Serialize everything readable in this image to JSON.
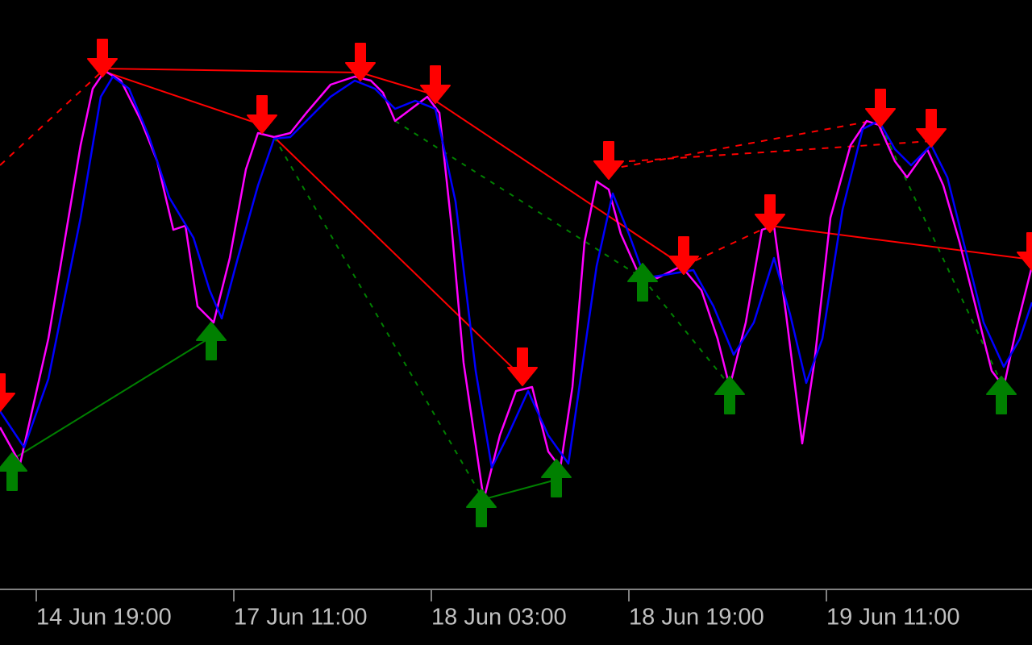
{
  "chart_data": {
    "type": "line",
    "xlim": [
      0,
      1280
    ],
    "ylim": [
      0,
      730
    ],
    "grid": false,
    "xticks": [
      {
        "value": 45,
        "label": "14 Jun 19:00"
      },
      {
        "value": 290,
        "label": "17 Jun 11:00"
      },
      {
        "value": 535,
        "label": "18 Jun 03:00"
      },
      {
        "value": 780,
        "label": "18 Jun 19:00"
      },
      {
        "value": 1025,
        "label": "19 Jun 11:00"
      }
    ],
    "series": [
      {
        "color": "#ff00ff",
        "marker": "none",
        "x": [
          0,
          25,
          60,
          100,
          115,
          130,
          150,
          175,
          195,
          215,
          230,
          245,
          265,
          285,
          305,
          320,
          340,
          360,
          380,
          410,
          440,
          460,
          475,
          490,
          510,
          530,
          545,
          560,
          575,
          600,
          620,
          640,
          660,
          680,
          695,
          710,
          725,
          740,
          755,
          770,
          790,
          815,
          845,
          870,
          890,
          905,
          925,
          945,
          960,
          975,
          995,
          1010,
          1030,
          1055,
          1075,
          1090,
          1110,
          1125,
          1150,
          1170,
          1190,
          1210,
          1230,
          1245,
          1260,
          1280
        ],
        "values": [
          200,
          155,
          310,
          550,
          620,
          642,
          630,
          580,
          530,
          445,
          450,
          350,
          330,
          410,
          520,
          565,
          560,
          565,
          590,
          625,
          635,
          630,
          615,
          580,
          595,
          610,
          590,
          450,
          280,
          110,
          190,
          245,
          250,
          170,
          150,
          250,
          430,
          505,
          495,
          440,
          395,
          385,
          400,
          370,
          310,
          250,
          330,
          445,
          450,
          340,
          180,
          280,
          460,
          550,
          580,
          575,
          530,
          510,
          545,
          500,
          430,
          350,
          270,
          250,
          320,
          400
        ]
      },
      {
        "color": "#0000ff",
        "marker": "none",
        "x": [
          0,
          30,
          60,
          100,
          125,
          140,
          160,
          185,
          210,
          240,
          260,
          275,
          295,
          320,
          340,
          360,
          380,
          410,
          440,
          465,
          490,
          515,
          540,
          565,
          590,
          610,
          630,
          655,
          680,
          705,
          720,
          740,
          760,
          780,
          800,
          830,
          860,
          885,
          910,
          935,
          960,
          980,
          1000,
          1020,
          1045,
          1070,
          1090,
          1110,
          1130,
          1155,
          1175,
          1195,
          1220,
          1245,
          1265,
          1280
        ],
        "values": [
          220,
          175,
          260,
          460,
          610,
          635,
          620,
          560,
          485,
          435,
          370,
          335,
          410,
          500,
          558,
          560,
          580,
          610,
          630,
          620,
          595,
          605,
          595,
          480,
          270,
          150,
          190,
          245,
          190,
          155,
          260,
          400,
          490,
          440,
          385,
          390,
          395,
          350,
          290,
          330,
          410,
          340,
          255,
          310,
          470,
          570,
          580,
          545,
          525,
          550,
          510,
          430,
          330,
          275,
          310,
          355
        ]
      },
      {
        "color": "#ff0000",
        "marker": "arrow-down",
        "x": [
          0,
          127,
          325,
          447,
          540,
          648,
          755,
          848,
          955,
          1092,
          1155,
          1280
        ],
        "values": [
          220,
          635,
          565,
          630,
          602,
          252,
          508,
          390,
          442,
          573,
          548,
          395
        ]
      },
      {
        "color": "#008000",
        "marker": "arrow-up",
        "x": [
          15,
          262,
          597,
          690,
          797,
          905,
          1242
        ],
        "values": [
          168,
          330,
          123,
          160,
          403,
          263,
          263
        ]
      }
    ]
  }
}
